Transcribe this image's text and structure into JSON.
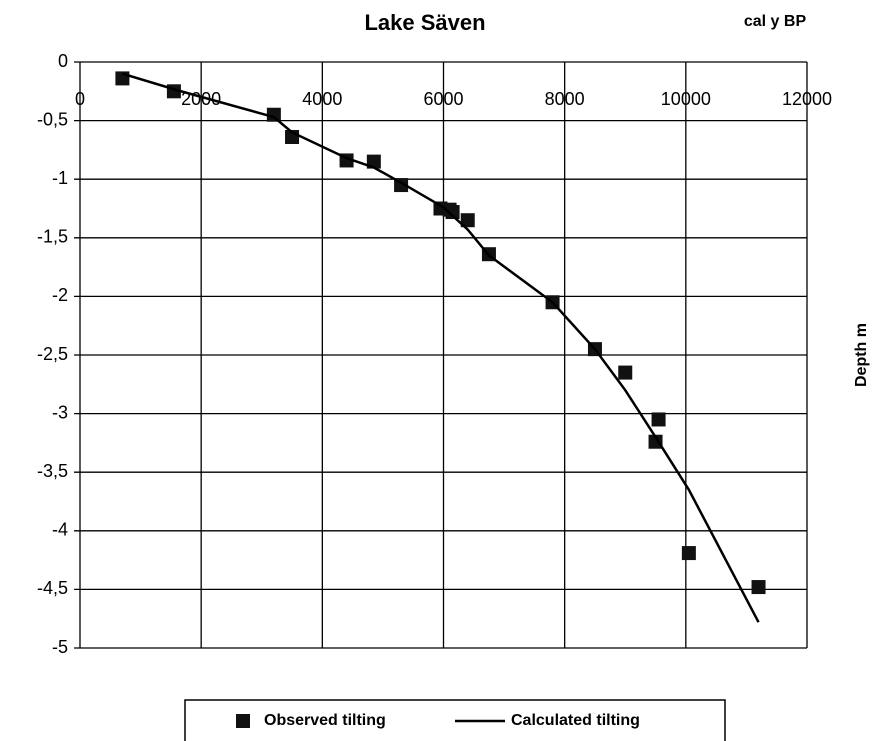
{
  "chart_data": {
    "type": "scatter",
    "title": "Lake Säven",
    "x_label": "cal y BP",
    "y_label": "Depth m",
    "xlim": [
      0,
      12000
    ],
    "xticks": [
      0,
      2000,
      4000,
      6000,
      8000,
      10000,
      12000
    ],
    "ylim": [
      -5,
      0
    ],
    "yticks": [
      {
        "value": 0,
        "label": "0"
      },
      {
        "value": -0.5,
        "label": "-0,5"
      },
      {
        "value": -1,
        "label": "-1"
      },
      {
        "value": -1.5,
        "label": "-1,5"
      },
      {
        "value": -2,
        "label": "-2"
      },
      {
        "value": -2.5,
        "label": "-2,5"
      },
      {
        "value": -3,
        "label": "-3"
      },
      {
        "value": -3.5,
        "label": "-3,5"
      },
      {
        "value": -4,
        "label": "-4"
      },
      {
        "value": -4.5,
        "label": "-4,5"
      },
      {
        "value": -5,
        "label": "-5"
      }
    ],
    "grid": true,
    "legend": "bottom",
    "series": [
      {
        "name": "Observed tilting",
        "color": "#111111",
        "kind": "markers",
        "x": [
          700,
          1550,
          3200,
          3500,
          4400,
          4850,
          5300,
          5950,
          6100,
          6150,
          6400,
          6750,
          7800,
          8500,
          9000,
          9500,
          9550,
          10050,
          11200
        ],
        "values": [
          -0.14,
          -0.25,
          -0.45,
          -0.64,
          -0.84,
          -0.85,
          -1.05,
          -1.25,
          -1.26,
          -1.28,
          -1.35,
          -1.64,
          -2.05,
          -2.45,
          -2.65,
          -3.24,
          -3.05,
          -4.19,
          -4.48
        ]
      },
      {
        "name": "Calculated tilting",
        "color": "#000000",
        "kind": "line",
        "x": [
          700,
          1600,
          3200,
          3500,
          4400,
          4850,
          5300,
          6000,
          6400,
          6750,
          7800,
          8500,
          9000,
          9500,
          10050,
          11200
        ],
        "values": [
          -0.1,
          -0.24,
          -0.47,
          -0.6,
          -0.82,
          -0.9,
          -1.03,
          -1.24,
          -1.43,
          -1.65,
          -2.05,
          -2.45,
          -2.8,
          -3.2,
          -3.65,
          -4.78
        ]
      }
    ]
  }
}
